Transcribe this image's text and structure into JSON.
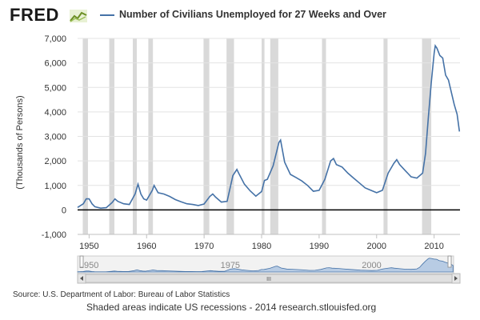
{
  "header": {
    "logo_text": "FRED",
    "logo_icon": "fred-chart-logo-icon",
    "legend_label": "Number of Civilians Unemployed for 27 Weeks and Over"
  },
  "footer": {
    "source": "Source: U.S. Department of Labor: Bureau of Labor Statistics",
    "note": "Shaded areas indicate US recessions - 2014 research.stlouisfed.org"
  },
  "navigator": {
    "tick_labels": [
      "1950",
      "1975",
      "2000"
    ],
    "scrollbar_grip": "III",
    "left_arrow_icon": "arrow-left-icon",
    "right_arrow_icon": "arrow-right-icon"
  },
  "colors": {
    "series": "#4572a7",
    "recession": "#d9d9d9",
    "zero_line": "#000000"
  },
  "chart_data": {
    "type": "line",
    "title": "",
    "xlabel": "",
    "ylabel": "(Thousands of Persons)",
    "xlim": [
      1948,
      2014.5
    ],
    "ylim": [
      -1000,
      7000
    ],
    "y_ticks": [
      -1000,
      0,
      1000,
      2000,
      3000,
      4000,
      5000,
      6000,
      7000
    ],
    "y_tick_labels": [
      "-1,000",
      "0",
      "1,000",
      "2,000",
      "3,000",
      "4,000",
      "5,000",
      "6,000",
      "7,000"
    ],
    "x_ticks": [
      1950,
      1960,
      1970,
      1980,
      1990,
      2000,
      2010
    ],
    "x_tick_labels": [
      "1950",
      "1960",
      "1970",
      "1980",
      "1990",
      "2000",
      "2010"
    ],
    "grid": "horizontal",
    "legend": "top",
    "recessions": [
      [
        1948.9,
        1949.8
      ],
      [
        1953.5,
        1954.4
      ],
      [
        1957.6,
        1958.3
      ],
      [
        1960.3,
        1961.1
      ],
      [
        1969.9,
        1970.9
      ],
      [
        1973.9,
        1975.2
      ],
      [
        1980.0,
        1980.5
      ],
      [
        1981.5,
        1982.9
      ],
      [
        1990.5,
        1991.2
      ],
      [
        2001.2,
        2001.9
      ],
      [
        2007.9,
        2009.5
      ]
    ],
    "series": [
      {
        "name": "Number of Civilians Unemployed for 27 Weeks and Over",
        "x": [
          1948,
          1949,
          1949.5,
          1950,
          1950.5,
          1951,
          1952,
          1953,
          1954,
          1954.5,
          1955,
          1956,
          1957,
          1958,
          1958.5,
          1959,
          1959.5,
          1960,
          1961,
          1961.3,
          1962,
          1963,
          1964,
          1965,
          1966,
          1967,
          1968,
          1969,
          1970,
          1971,
          1971.5,
          1972,
          1973,
          1974,
          1975,
          1975.7,
          1976,
          1977,
          1978,
          1979,
          1980,
          1980.5,
          1981,
          1982,
          1983,
          1983.3,
          1984,
          1985,
          1986,
          1987,
          1988,
          1989,
          1990,
          1991,
          1992,
          1992.5,
          1993,
          1994,
          1995,
          1996,
          1997,
          1998,
          1999,
          2000,
          2001,
          2002,
          2003,
          2003.5,
          2004,
          2005,
          2006,
          2007,
          2008,
          2008.5,
          2009,
          2009.5,
          2010,
          2010.2,
          2010.5,
          2011,
          2011.5,
          2012,
          2012.5,
          2013,
          2013.5,
          2014,
          2014.4
        ],
        "y": [
          100,
          250,
          450,
          450,
          250,
          130,
          70,
          90,
          300,
          450,
          350,
          250,
          220,
          650,
          1050,
          650,
          450,
          400,
          800,
          1000,
          700,
          650,
          550,
          420,
          330,
          250,
          220,
          180,
          240,
          550,
          650,
          520,
          320,
          350,
          1400,
          1650,
          1500,
          1050,
          780,
          560,
          750,
          1200,
          1250,
          1800,
          2750,
          2850,
          1950,
          1450,
          1320,
          1180,
          1000,
          760,
          800,
          1250,
          2000,
          2100,
          1850,
          1750,
          1500,
          1300,
          1100,
          900,
          800,
          700,
          800,
          1500,
          1900,
          2050,
          1850,
          1600,
          1350,
          1300,
          1500,
          2300,
          3800,
          5200,
          6400,
          6700,
          6600,
          6300,
          6200,
          5500,
          5300,
          4800,
          4300,
          3900,
          3200
        ]
      }
    ],
    "navigator_tick_labels": [
      "1950",
      "1975",
      "2000"
    ]
  }
}
